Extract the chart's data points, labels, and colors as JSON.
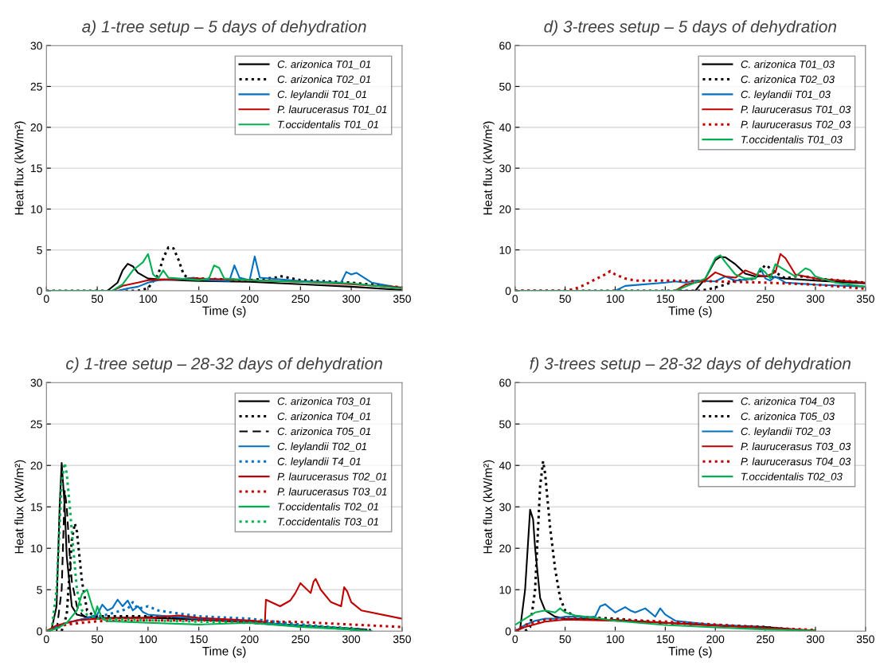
{
  "chart_data": [
    {
      "type": "line",
      "title": "a) 1-tree setup – 5 days of dehydration",
      "xlabel": "Time (s)",
      "ylabel": "Heat flux (kW/m²)",
      "xlim": [
        0,
        350
      ],
      "xticks": [
        0,
        50,
        100,
        150,
        200,
        250,
        300,
        350
      ],
      "ylim": [
        0,
        30
      ],
      "yticks": [
        0,
        5,
        10,
        15,
        20,
        25,
        30
      ],
      "grid": "y",
      "legend": "top right",
      "series": [
        {
          "name": "C. arizonica T01_01",
          "color": "#000000",
          "line_style": "solid",
          "x": [
            0,
            60,
            70,
            75,
            80,
            85,
            90,
            100,
            110,
            150,
            200,
            250,
            300,
            350
          ],
          "values": [
            0,
            0,
            1,
            2.5,
            3.3,
            3.0,
            2.2,
            1.5,
            1.4,
            1.2,
            1.1,
            0.8,
            0.5,
            0.1
          ]
        },
        {
          "name": "C. arizonica T02_01",
          "color": "#000000",
          "line_style": "dotted",
          "x": [
            0,
            90,
            100,
            110,
            115,
            120,
            125,
            130,
            135,
            140,
            150,
            200,
            225,
            230,
            250,
            300,
            350
          ],
          "values": [
            0,
            0,
            0.3,
            2,
            4,
            5.3,
            5.2,
            3.8,
            2,
            1.5,
            1.5,
            1.3,
            1.6,
            1.8,
            1.3,
            1,
            0.4
          ]
        },
        {
          "name": "C. leylandii T01_01",
          "color": "#0070c0",
          "line_style": "solid",
          "x": [
            0,
            70,
            80,
            90,
            100,
            110,
            130,
            145,
            150,
            160,
            180,
            185,
            190,
            200,
            205,
            210,
            250,
            290,
            295,
            300,
            305,
            320,
            350
          ],
          "values": [
            0,
            0,
            0.3,
            0.5,
            1,
            1.3,
            1.4,
            1.6,
            1.4,
            1.3,
            1.2,
            3.1,
            1.6,
            1.3,
            4.2,
            1.6,
            1.2,
            1.0,
            2.3,
            2,
            2.2,
            1,
            0.3
          ]
        },
        {
          "name": "P. laurucerasus T01_01",
          "color": "#c00000",
          "line_style": "solid",
          "x": [
            0,
            65,
            75,
            90,
            100,
            120,
            150,
            200,
            250,
            300,
            350
          ],
          "values": [
            0,
            0,
            0.6,
            1.0,
            1.3,
            1.4,
            1.5,
            1.3,
            1.1,
            0.8,
            0.4
          ]
        },
        {
          "name": "T.occidentalis T01_01",
          "color": "#00b050",
          "line_style": "solid",
          "x": [
            0,
            65,
            75,
            85,
            90,
            95,
            100,
            105,
            110,
            115,
            120,
            140,
            150,
            160,
            165,
            170,
            175,
            200,
            250,
            300,
            350
          ],
          "values": [
            0,
            0,
            0.8,
            2.5,
            3,
            3.5,
            4.5,
            2,
            1.5,
            2.5,
            1.6,
            1.4,
            1.3,
            1.5,
            3.1,
            2.8,
            1.5,
            1.3,
            1.1,
            0.9,
            0.3
          ]
        }
      ]
    },
    {
      "type": "line",
      "title": "d) 3-trees setup – 5 days of dehydration",
      "xlabel": "Time (s)",
      "ylabel": "Heat flux (kW/m²)",
      "xlim": [
        0,
        350
      ],
      "xticks": [
        0,
        50,
        100,
        150,
        200,
        250,
        300,
        350
      ],
      "ylim": [
        0,
        60
      ],
      "yticks": [
        0,
        10,
        20,
        30,
        40,
        50,
        60
      ],
      "grid": "y",
      "legend": "top right",
      "series": [
        {
          "name": "C. arizonica T01_03",
          "color": "#000000",
          "line_style": "solid",
          "x": [
            0,
            180,
            190,
            200,
            205,
            210,
            220,
            230,
            240,
            250,
            270,
            300,
            350
          ],
          "values": [
            0,
            0,
            3,
            7.5,
            8.3,
            8.2,
            6.5,
            4.2,
            3.5,
            3.6,
            3,
            2.5,
            1.8
          ]
        },
        {
          "name": "C. arizonica T02_03",
          "color": "#000000",
          "line_style": "dotted",
          "x": [
            0,
            185,
            195,
            210,
            220,
            240,
            245,
            250,
            255,
            260,
            270,
            280,
            290,
            300,
            350
          ],
          "values": [
            0,
            0,
            0.5,
            1.5,
            2.5,
            3,
            5,
            6.3,
            5.5,
            4.5,
            3,
            3.5,
            3.5,
            3,
            2
          ]
        },
        {
          "name": "C. leylandii T01_03",
          "color": "#0070c0",
          "line_style": "solid",
          "x": [
            0,
            100,
            110,
            150,
            160,
            170,
            180,
            200,
            210,
            220,
            240,
            245,
            250,
            255,
            260,
            270,
            300,
            350
          ],
          "values": [
            0,
            0,
            1.2,
            2,
            2.3,
            2,
            2.5,
            2.3,
            3.5,
            2.5,
            3,
            5.5,
            3,
            2.5,
            3.5,
            2,
            1.5,
            1
          ]
        },
        {
          "name": "P. laurucerasus T01_03",
          "color": "#c00000",
          "line_style": "solid",
          "x": [
            0,
            160,
            170,
            190,
            200,
            210,
            220,
            230,
            240,
            250,
            260,
            265,
            270,
            280,
            300,
            350
          ],
          "values": [
            0,
            0,
            1.5,
            2.5,
            4.5,
            3.5,
            3.2,
            5,
            4,
            3.5,
            4.5,
            9,
            8,
            4,
            3,
            2
          ]
        },
        {
          "name": "P. laurucerasus T02_03",
          "color": "#c00000",
          "line_style": "dotted",
          "x": [
            0,
            50,
            60,
            70,
            80,
            90,
            95,
            100,
            110,
            120,
            150,
            200,
            250,
            300,
            350
          ],
          "values": [
            0,
            0,
            0.5,
            1.5,
            2.8,
            4,
            4.8,
            4,
            3,
            2.5,
            2.5,
            2.3,
            2,
            1.5,
            0.5
          ]
        },
        {
          "name": "T.occidentalis T01_03",
          "color": "#00b050",
          "line_style": "solid",
          "x": [
            0,
            160,
            170,
            190,
            200,
            205,
            210,
            220,
            230,
            240,
            245,
            250,
            255,
            260,
            270,
            280,
            290,
            295,
            300,
            320,
            350
          ],
          "values": [
            0,
            0,
            1.0,
            3,
            8,
            8.7,
            7,
            4,
            3,
            3,
            5.5,
            4.5,
            3,
            6.5,
            5,
            3.5,
            5.5,
            5,
            3.5,
            2,
            1
          ]
        }
      ]
    },
    {
      "type": "line",
      "title": "c) 1-tree setup – 28-32 days of dehydration",
      "xlabel": "Time (s)",
      "ylabel": "Heat flux (kW/m²)",
      "xlim": [
        0,
        350
      ],
      "xticks": [
        0,
        50,
        100,
        150,
        200,
        250,
        300,
        350
      ],
      "ylim": [
        0,
        30
      ],
      "yticks": [
        0,
        5,
        10,
        15,
        20,
        25,
        30
      ],
      "grid": "y",
      "legend": "top right",
      "series": [
        {
          "name": "C. arizonica T03_01",
          "color": "#000000",
          "line_style": "solid",
          "x": [
            0,
            5,
            10,
            13,
            15,
            18,
            20,
            25,
            30,
            40,
            50,
            100,
            150,
            200,
            250,
            300,
            315
          ],
          "values": [
            0,
            0.2,
            3,
            15,
            20.3,
            15,
            9,
            3,
            2,
            1.7,
            1.6,
            1.6,
            1.4,
            1.1,
            0.7,
            0.3,
            0.2
          ]
        },
        {
          "name": "C. arizonica T04_01",
          "color": "#000000",
          "line_style": "dotted",
          "x": [
            15,
            20,
            25,
            28,
            30,
            35,
            40,
            45,
            50,
            100,
            150,
            200,
            250,
            300,
            320
          ],
          "values": [
            0,
            2,
            11,
            13,
            12,
            6,
            2.5,
            2,
            1.8,
            1.8,
            1.5,
            1.2,
            0.7,
            0.3,
            0.1
          ]
        },
        {
          "name": "C. arizonica T05_01",
          "color": "#000000",
          "line_style": "dashed",
          "x": [
            10,
            15,
            18,
            20,
            23,
            25,
            30,
            35,
            40,
            50,
            100,
            150,
            200,
            250,
            300
          ],
          "values": [
            0,
            5,
            17,
            15,
            9,
            6,
            3,
            2,
            1.6,
            1.5,
            1.7,
            1.5,
            1.0,
            0.6,
            0.2
          ]
        },
        {
          "name": "C. leylandii T02_01",
          "color": "#0070c0",
          "line_style": "solid",
          "x": [
            0,
            10,
            20,
            30,
            40,
            50,
            55,
            60,
            65,
            70,
            75,
            80,
            85,
            90,
            95,
            100,
            150,
            200,
            250,
            300,
            310
          ],
          "values": [
            0,
            0.5,
            1,
            1.3,
            1.6,
            2,
            3.2,
            2.5,
            2.8,
            3.8,
            3.0,
            3.7,
            2.5,
            3.0,
            2.3,
            2.0,
            1.5,
            1.2,
            0.6,
            0.2,
            0
          ]
        },
        {
          "name": "C. leylandii T4_01",
          "color": "#0070c0",
          "line_style": "dotted",
          "x": [
            0,
            20,
            40,
            60,
            80,
            85,
            90,
            100,
            110,
            120,
            150,
            200,
            250,
            300,
            320
          ],
          "values": [
            0,
            1,
            1.5,
            2,
            2.7,
            3.5,
            2.7,
            3,
            2.5,
            2.3,
            1.8,
            1.5,
            0.8,
            0.3,
            0
          ]
        },
        {
          "name": "P. laurucerasus T02_01",
          "color": "#c00000",
          "line_style": "solid",
          "x": [
            0,
            10,
            30,
            50,
            100,
            130,
            150,
            200,
            215,
            216,
            230,
            240,
            245,
            250,
            255,
            260,
            263,
            265,
            270,
            280,
            290,
            293,
            296,
            300,
            310,
            350
          ],
          "values": [
            0,
            0.7,
            1.3,
            1.5,
            1.6,
            1.9,
            1.6,
            1.3,
            1.1,
            3.8,
            3,
            3.7,
            4.6,
            5.8,
            5.2,
            4.6,
            6,
            6.3,
            5,
            3.5,
            3,
            5.3,
            4.8,
            3.5,
            2.5,
            1.5
          ]
        },
        {
          "name": "P. laurucerasus T03_01",
          "color": "#c00000",
          "line_style": "dotted",
          "x": [
            0,
            20,
            50,
            100,
            150,
            200,
            250,
            300,
            350
          ],
          "values": [
            0,
            0.8,
            1.2,
            1.3,
            1.3,
            1.2,
            1.1,
            0.8,
            0.5
          ]
        },
        {
          "name": "T.occidentalis T02_01",
          "color": "#00b050",
          "line_style": "solid",
          "x": [
            0,
            10,
            20,
            30,
            35,
            40,
            45,
            48,
            50,
            55,
            60,
            100,
            150,
            200,
            250,
            300,
            320
          ],
          "values": [
            0,
            0.3,
            1.0,
            2.5,
            4.5,
            5,
            3,
            2,
            3,
            1.5,
            1.2,
            1.0,
            0.8,
            1.0,
            0.5,
            0.2,
            0
          ]
        },
        {
          "name": "T.occidentalis T03_01",
          "color": "#00b050",
          "line_style": "dotted",
          "x": [
            5,
            10,
            15,
            18,
            20,
            23,
            25,
            30,
            35,
            40,
            50,
            100,
            200,
            300,
            310
          ],
          "values": [
            0,
            5,
            18,
            20.3,
            19,
            15,
            12,
            5,
            2.5,
            2,
            1.5,
            1.3,
            1,
            0.3,
            0
          ]
        }
      ]
    },
    {
      "type": "line",
      "title": "f) 3-trees setup – 28-32 days of dehydration",
      "xlabel": "Time (s)",
      "ylabel": "Heat flux (kW/m²)",
      "xlim": [
        0,
        350
      ],
      "xticks": [
        0,
        50,
        100,
        150,
        200,
        250,
        300,
        350
      ],
      "ylim": [
        0,
        60
      ],
      "yticks": [
        0,
        10,
        20,
        30,
        40,
        50,
        60
      ],
      "grid": "y",
      "legend": "top right",
      "series": [
        {
          "name": "C. arizonica T04_03",
          "color": "#000000",
          "line_style": "solid",
          "x": [
            0,
            5,
            10,
            15,
            18,
            20,
            25,
            30,
            40,
            50,
            100,
            150,
            200,
            250,
            290
          ],
          "values": [
            0,
            0.5,
            10,
            29.3,
            27,
            20,
            8,
            5,
            3.5,
            3,
            2.7,
            2,
            1.5,
            1,
            0.2
          ]
        },
        {
          "name": "C. arizonica T05_03",
          "color": "#000000",
          "line_style": "dotted",
          "x": [
            10,
            15,
            20,
            25,
            28,
            30,
            35,
            40,
            45,
            50,
            60,
            100,
            150,
            200,
            250,
            290
          ],
          "values": [
            0,
            1,
            10,
            35,
            41,
            38,
            25,
            15,
            8,
            5,
            3.5,
            3,
            2,
            1.5,
            1,
            0
          ]
        },
        {
          "name": "C. leylandii T02_03",
          "color": "#0070c0",
          "line_style": "solid",
          "x": [
            0,
            10,
            20,
            30,
            40,
            50,
            60,
            70,
            80,
            85,
            90,
            95,
            100,
            110,
            115,
            120,
            130,
            140,
            145,
            150,
            160,
            200,
            250
          ],
          "values": [
            0,
            1.5,
            2.5,
            3,
            3,
            3.5,
            3.5,
            3.3,
            3.5,
            6,
            6.5,
            5.5,
            4.5,
            5.8,
            5,
            4.5,
            5.5,
            3.5,
            5.5,
            4,
            2.5,
            1.5,
            0.8
          ]
        },
        {
          "name": "P. laurucerasus T03_03",
          "color": "#c00000",
          "line_style": "solid",
          "x": [
            0,
            10,
            30,
            50,
            100,
            150,
            200,
            250,
            300
          ],
          "values": [
            0,
            1,
            2.3,
            2.8,
            2.5,
            2,
            1.3,
            0.7,
            0.2
          ]
        },
        {
          "name": "P. laurucerasus T04_03",
          "color": "#c00000",
          "line_style": "dotted",
          "x": [
            0,
            10,
            30,
            50,
            100,
            150,
            200,
            250,
            300
          ],
          "values": [
            0,
            1.5,
            2.7,
            3,
            2.8,
            2.3,
            1.6,
            0.8,
            0.3
          ]
        },
        {
          "name": "T.occidentalis T02_03",
          "color": "#00b050",
          "line_style": "solid",
          "x": [
            0,
            10,
            20,
            30,
            40,
            45,
            50,
            60,
            70,
            80,
            100,
            150,
            200,
            250,
            300
          ],
          "values": [
            1.5,
            3,
            4.5,
            5,
            4.5,
            5.5,
            4.5,
            3.8,
            3.5,
            3.2,
            2.5,
            1.5,
            0.9,
            0.4,
            0.1
          ]
        }
      ]
    }
  ]
}
